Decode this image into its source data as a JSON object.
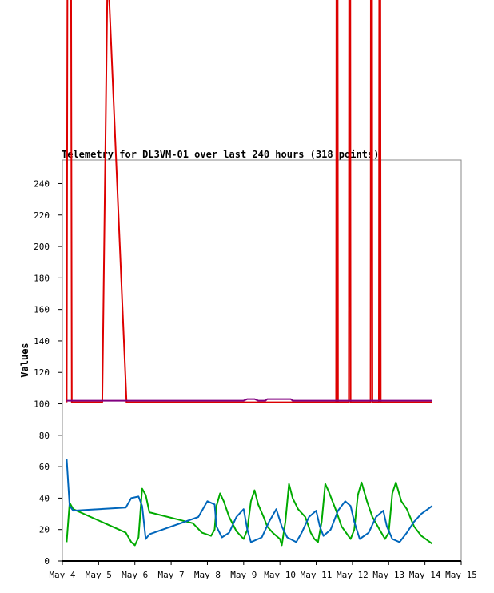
{
  "chart_data": {
    "type": "line",
    "title": "Telemetry for DL3VM-01 over last 240 hours (318 points)",
    "xlabel": "",
    "ylabel": "Values",
    "xlim": [
      4.0,
      15.0
    ],
    "ylim": [
      0,
      255
    ],
    "x_ticks": [
      {
        "label": "May 4",
        "value": 4
      },
      {
        "label": "May 5",
        "value": 5
      },
      {
        "label": "May 6",
        "value": 6
      },
      {
        "label": "May 7",
        "value": 7
      },
      {
        "label": "May 8",
        "value": 8
      },
      {
        "label": "May 9",
        "value": 9
      },
      {
        "label": "May 10",
        "value": 10
      },
      {
        "label": "May 11",
        "value": 11
      },
      {
        "label": "May 12",
        "value": 12
      },
      {
        "label": "May 13",
        "value": 13
      },
      {
        "label": "May 14",
        "value": 14
      },
      {
        "label": "May 15",
        "value": 15
      }
    ],
    "y_ticks": [
      0,
      20,
      40,
      60,
      80,
      100,
      120,
      140,
      160,
      180,
      200,
      220,
      240
    ],
    "grid": false,
    "series": [
      {
        "color": "#dd0000",
        "points": [
          [
            4.12,
            101
          ],
          [
            4.14,
            380
          ],
          [
            4.24,
            380
          ],
          [
            4.26,
            101
          ],
          [
            5.1,
            101
          ],
          [
            5.25,
            380
          ],
          [
            5.77,
            101
          ],
          [
            11.55,
            101
          ],
          [
            11.56,
            380
          ],
          [
            11.59,
            380
          ],
          [
            11.6,
            101
          ],
          [
            11.9,
            101
          ],
          [
            11.91,
            380
          ],
          [
            11.94,
            380
          ],
          [
            11.95,
            101
          ],
          [
            12.5,
            101
          ],
          [
            12.51,
            380
          ],
          [
            12.54,
            380
          ],
          [
            12.55,
            101
          ],
          [
            12.73,
            101
          ],
          [
            12.74,
            380
          ],
          [
            12.77,
            380
          ],
          [
            12.78,
            101
          ],
          [
            14.2,
            101
          ]
        ]
      },
      {
        "color": "#800080",
        "points": [
          [
            4.12,
            102
          ],
          [
            9.0,
            102
          ],
          [
            9.1,
            103
          ],
          [
            9.3,
            103
          ],
          [
            9.4,
            102
          ],
          [
            9.6,
            102
          ],
          [
            9.65,
            103
          ],
          [
            10.3,
            103
          ],
          [
            10.35,
            102
          ],
          [
            14.2,
            102
          ]
        ]
      },
      {
        "color": "#00aa00",
        "points": [
          [
            4.12,
            12
          ],
          [
            4.2,
            37
          ],
          [
            4.3,
            33
          ],
          [
            5.75,
            18
          ],
          [
            5.9,
            12
          ],
          [
            6.0,
            10
          ],
          [
            6.1,
            15
          ],
          [
            6.2,
            46
          ],
          [
            6.3,
            42
          ],
          [
            6.4,
            31
          ],
          [
            7.6,
            24
          ],
          [
            7.85,
            18
          ],
          [
            8.1,
            16
          ],
          [
            8.2,
            20
          ],
          [
            8.25,
            35
          ],
          [
            8.35,
            43
          ],
          [
            8.45,
            38
          ],
          [
            8.6,
            28
          ],
          [
            8.8,
            19
          ],
          [
            9.0,
            14
          ],
          [
            9.1,
            20
          ],
          [
            9.2,
            38
          ],
          [
            9.3,
            45
          ],
          [
            9.4,
            36
          ],
          [
            9.55,
            28
          ],
          [
            9.65,
            22
          ],
          [
            9.8,
            18
          ],
          [
            10.0,
            14
          ],
          [
            10.05,
            10
          ],
          [
            10.15,
            25
          ],
          [
            10.25,
            49
          ],
          [
            10.35,
            40
          ],
          [
            10.5,
            33
          ],
          [
            10.7,
            28
          ],
          [
            10.85,
            18
          ],
          [
            10.95,
            14
          ],
          [
            11.05,
            12
          ],
          [
            11.15,
            25
          ],
          [
            11.25,
            49
          ],
          [
            11.35,
            44
          ],
          [
            11.55,
            32
          ],
          [
            11.7,
            22
          ],
          [
            11.95,
            14
          ],
          [
            12.05,
            20
          ],
          [
            12.15,
            42
          ],
          [
            12.25,
            50
          ],
          [
            12.4,
            38
          ],
          [
            12.55,
            28
          ],
          [
            12.75,
            20
          ],
          [
            12.9,
            14
          ],
          [
            13.0,
            18
          ],
          [
            13.1,
            43
          ],
          [
            13.2,
            50
          ],
          [
            13.35,
            38
          ],
          [
            13.5,
            33
          ],
          [
            13.7,
            22
          ],
          [
            13.9,
            16
          ],
          [
            14.2,
            11
          ]
        ]
      },
      {
        "color": "#0066bb",
        "points": [
          [
            4.12,
            65
          ],
          [
            4.2,
            35
          ],
          [
            4.3,
            32
          ],
          [
            5.75,
            34
          ],
          [
            5.9,
            40
          ],
          [
            6.1,
            41
          ],
          [
            6.2,
            35
          ],
          [
            6.3,
            14
          ],
          [
            6.4,
            17
          ],
          [
            7.75,
            28
          ],
          [
            8.0,
            38
          ],
          [
            8.2,
            36
          ],
          [
            8.25,
            22
          ],
          [
            8.4,
            15
          ],
          [
            8.6,
            18
          ],
          [
            8.8,
            28
          ],
          [
            9.0,
            33
          ],
          [
            9.1,
            20
          ],
          [
            9.2,
            12
          ],
          [
            9.5,
            15
          ],
          [
            9.7,
            25
          ],
          [
            9.9,
            33
          ],
          [
            10.05,
            22
          ],
          [
            10.2,
            15
          ],
          [
            10.45,
            12
          ],
          [
            10.6,
            18
          ],
          [
            10.8,
            28
          ],
          [
            11.0,
            32
          ],
          [
            11.1,
            22
          ],
          [
            11.2,
            16
          ],
          [
            11.4,
            20
          ],
          [
            11.6,
            32
          ],
          [
            11.8,
            38
          ],
          [
            11.95,
            35
          ],
          [
            12.05,
            25
          ],
          [
            12.2,
            14
          ],
          [
            12.45,
            18
          ],
          [
            12.65,
            28
          ],
          [
            12.85,
            32
          ],
          [
            12.95,
            22
          ],
          [
            13.1,
            14
          ],
          [
            13.3,
            12
          ],
          [
            13.5,
            18
          ],
          [
            13.7,
            25
          ],
          [
            13.9,
            30
          ],
          [
            14.2,
            35
          ]
        ]
      }
    ]
  }
}
